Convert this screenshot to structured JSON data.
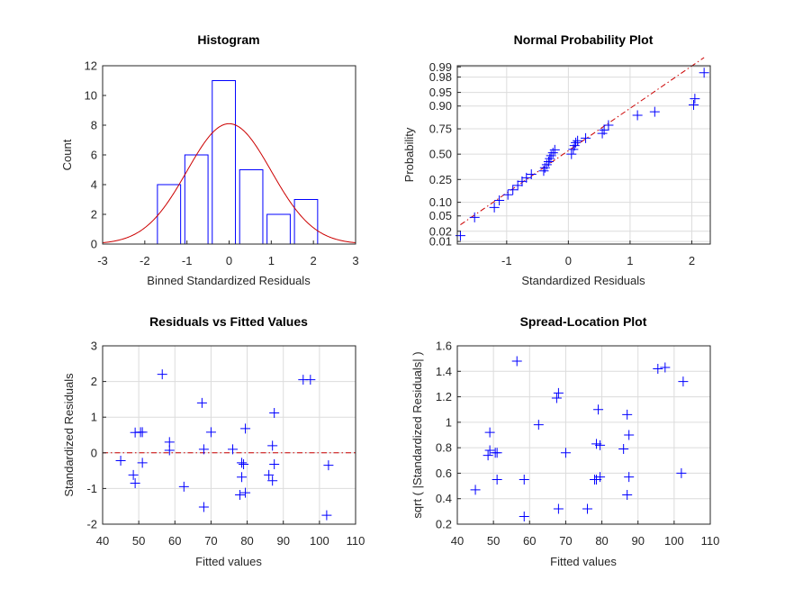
{
  "chart_data": [
    {
      "type": "bar",
      "title": "Histogram",
      "xlabel": "Binned Standardized Residuals",
      "ylabel": "Count",
      "xlim": [
        -3,
        3
      ],
      "ylim": [
        0,
        12
      ],
      "xticks": [
        "-3",
        "-2",
        "-1",
        "0",
        "1",
        "2",
        "3"
      ],
      "yticks": [
        "0",
        "2",
        "4",
        "6",
        "8",
        "10",
        "12"
      ],
      "grid": false,
      "bins": [
        {
          "left": -1.7,
          "right": -1.15,
          "count": 4
        },
        {
          "left": -1.05,
          "right": -0.5,
          "count": 6
        },
        {
          "left": -0.4,
          "right": 0.15,
          "count": 11
        },
        {
          "left": 0.25,
          "right": 0.8,
          "count": 5
        },
        {
          "left": 0.9,
          "right": 1.45,
          "count": 2
        },
        {
          "left": 1.55,
          "right": 2.1,
          "count": 3
        }
      ],
      "normal_curve": {
        "mean": 0,
        "sd": 1,
        "peak": 8.1
      },
      "colors": {
        "bars": "#0000ff",
        "curve": "#cc0000"
      }
    },
    {
      "type": "scatter",
      "title": "Normal Probability Plot",
      "xlabel": "Standardized Residuals",
      "ylabel": "Probability",
      "xlim": [
        -1.8,
        2.3
      ],
      "xticks": [
        "-1",
        "0",
        "1",
        "2"
      ],
      "yticks": [
        "0.01",
        "0.02",
        "0.05",
        "0.10",
        "0.25",
        "0.50",
        "0.75",
        "0.90",
        "0.95",
        "0.98",
        "0.99"
      ],
      "grid": true,
      "x": [
        -1.75,
        -1.52,
        -1.2,
        -1.12,
        -0.98,
        -0.9,
        -0.82,
        -0.75,
        -0.68,
        -0.6,
        -0.4,
        -0.38,
        -0.35,
        -0.32,
        -0.3,
        -0.28,
        -0.25,
        -0.22,
        0.05,
        0.08,
        0.1,
        0.12,
        0.15,
        0.28,
        0.55,
        0.58,
        0.65,
        1.12,
        1.4,
        2.03,
        2.05,
        2.2
      ],
      "y": [
        0.015,
        0.046,
        0.078,
        0.109,
        0.14,
        0.171,
        0.203,
        0.234,
        0.265,
        0.296,
        0.328,
        0.359,
        0.39,
        0.421,
        0.453,
        0.484,
        0.515,
        0.546,
        0.5,
        0.55,
        0.59,
        0.62,
        0.64,
        0.665,
        0.71,
        0.74,
        0.78,
        0.85,
        0.87,
        0.905,
        0.93,
        0.985
      ],
      "reference_line": {
        "from": [
          -1.75,
          0.03
        ],
        "to": [
          2.2,
          0.995
        ]
      },
      "colors": {
        "markers": "#0000ff",
        "line": "#cc0000"
      }
    },
    {
      "type": "scatter",
      "title": "Residuals vs Fitted Values",
      "xlabel": "Fitted values",
      "ylabel": "Standardized Residuals",
      "xlim": [
        40,
        110
      ],
      "ylim": [
        -2,
        3
      ],
      "xticks": [
        "40",
        "50",
        "60",
        "70",
        "80",
        "90",
        "100",
        "110"
      ],
      "yticks": [
        "-2",
        "-1",
        "0",
        "1",
        "2",
        "3"
      ],
      "grid": true,
      "x": [
        45,
        48.5,
        49,
        49,
        50.5,
        51,
        51,
        56.5,
        58.5,
        58.5,
        62.5,
        67.5,
        68,
        68,
        70,
        76,
        78,
        78.5,
        78.5,
        79,
        79.5,
        79.5,
        86,
        87,
        87,
        87.5,
        87.5,
        95.5,
        97.5,
        102,
        102.5
      ],
      "y": [
        -0.22,
        -0.62,
        -0.85,
        0.57,
        0.58,
        -0.28,
        0.58,
        2.2,
        0.07,
        0.3,
        -0.95,
        1.4,
        -1.52,
        0.1,
        0.58,
        0.1,
        -1.18,
        -0.68,
        -0.28,
        -0.32,
        -1.12,
        0.68,
        -0.62,
        -0.78,
        0.2,
        -0.32,
        1.12,
        2.05,
        2.05,
        -1.75,
        -0.35
      ],
      "reference_line": {
        "y": 0
      },
      "colors": {
        "markers": "#0000ff",
        "line": "#cc0000"
      }
    },
    {
      "type": "scatter",
      "title": "Spread-Location Plot",
      "xlabel": "Fitted values",
      "ylabel": "sqrt ( |Standardized Residuals| )",
      "xlim": [
        40,
        110
      ],
      "ylim": [
        0.2,
        1.6
      ],
      "xticks": [
        "40",
        "50",
        "60",
        "70",
        "80",
        "90",
        "100",
        "110"
      ],
      "yticks": [
        "0.2",
        "0.4",
        "0.6",
        "0.8",
        "1",
        "1.2",
        "1.4",
        "1.6"
      ],
      "grid": true,
      "x": [
        45,
        48.5,
        49,
        49,
        50.5,
        51,
        51,
        56.5,
        58.5,
        58.5,
        62.5,
        67.5,
        68,
        68,
        70,
        76,
        78,
        78.5,
        78.5,
        79,
        79.5,
        79.5,
        86,
        87,
        87,
        87.5,
        87.5,
        95.5,
        97.5,
        102,
        102.5
      ],
      "y": [
        0.47,
        0.74,
        0.78,
        0.92,
        0.76,
        0.55,
        0.76,
        1.48,
        0.26,
        0.55,
        0.98,
        1.19,
        1.23,
        0.32,
        0.76,
        0.32,
        0.55,
        0.83,
        0.55,
        1.1,
        0.57,
        0.82,
        0.79,
        0.43,
        1.06,
        0.57,
        0.9,
        1.42,
        1.43,
        0.6,
        1.32
      ],
      "colors": {
        "markers": "#0000ff"
      }
    }
  ]
}
